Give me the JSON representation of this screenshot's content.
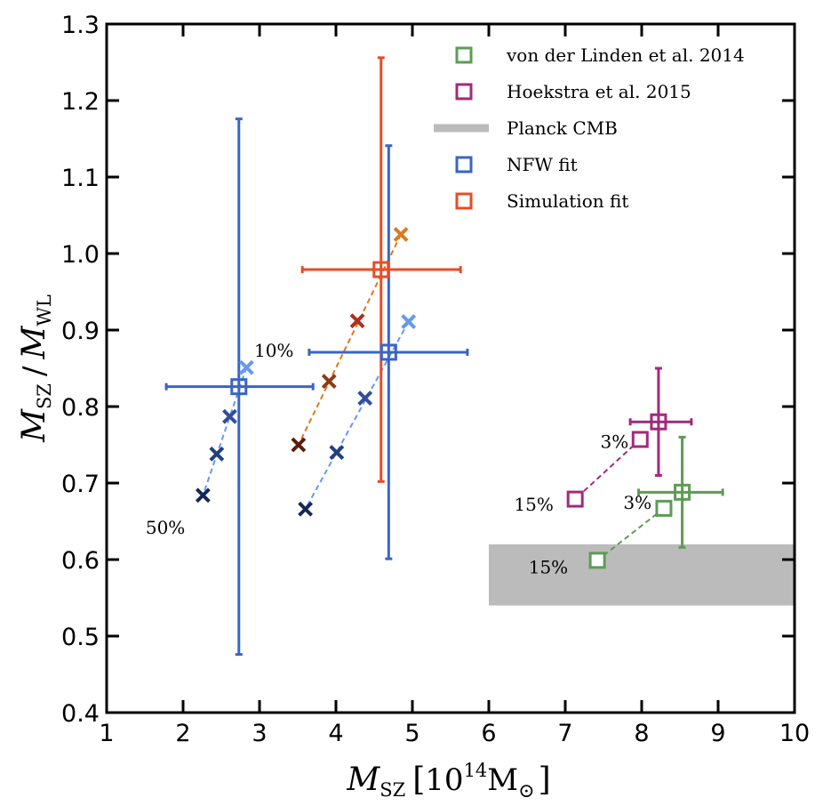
{
  "chart_data": {
    "type": "scatter",
    "xlabel": {
      "main": "M",
      "sub": "SZ",
      "bracket_open": "[",
      "base": "10",
      "exp": "14",
      "unit": "M",
      "sun": "⊙",
      "bracket_close": "]"
    },
    "ylabel": {
      "m1": "M",
      "s1": "SZ",
      "slash": "/",
      "m2": "M",
      "s2": "WL"
    },
    "xlim": [
      1,
      10
    ],
    "ylim": [
      0.4,
      1.3
    ],
    "xticks": [
      "1",
      "2",
      "3",
      "4",
      "5",
      "6",
      "7",
      "8",
      "9",
      "10"
    ],
    "yticks": [
      "0.4",
      "0.5",
      "0.6",
      "0.7",
      "0.8",
      "0.9",
      "1.0",
      "1.1",
      "1.2",
      "1.3"
    ],
    "grid": false,
    "legend": {
      "placement": "top-right",
      "entries": [
        {
          "label": "von der Linden et al. 2014",
          "color": "#5e9b55",
          "marker": "square"
        },
        {
          "label": "Hoekstra et al. 2015",
          "color": "#a3297a",
          "marker": "square"
        },
        {
          "label": "Planck CMB",
          "color": "#bbbbbb",
          "marker": "band"
        },
        {
          "label": "NFW fit",
          "color": "#3a64c8",
          "marker": "square"
        },
        {
          "label": "Simulation fit",
          "color": "#ea4b24",
          "marker": "square"
        }
      ]
    },
    "bands": [
      {
        "name": "Planck CMB",
        "x": [
          6,
          10
        ],
        "y": [
          0.54,
          0.62
        ],
        "color": "#bbbbbb"
      }
    ],
    "errorbars": [
      {
        "series": "NFW fit",
        "x": 2.73,
        "y": 0.826,
        "xerr": [
          0.95,
          0.97
        ],
        "yerr": [
          0.35,
          0.35
        ],
        "color": "#3a64c8"
      },
      {
        "series": "NFW fit",
        "x": 4.69,
        "y": 0.871,
        "xerr": [
          1.04,
          1.03
        ],
        "yerr": [
          0.27,
          0.27
        ],
        "color": "#3a64c8"
      },
      {
        "series": "Simulation fit",
        "x": 4.59,
        "y": 0.979,
        "xerr": [
          1.03,
          1.04
        ],
        "yerr": [
          0.277,
          0.277
        ],
        "color": "#ea4b24"
      },
      {
        "series": "Hoekstra et al. 2015",
        "x": 8.22,
        "y": 0.78,
        "xerr": [
          0.37,
          0.43
        ],
        "yerr": [
          0.07,
          0.07
        ],
        "color": "#a3297a"
      },
      {
        "series": "von der Linden et al. 2014",
        "x": 8.53,
        "y": 0.688,
        "xerr": [
          0.57,
          0.53
        ],
        "yerr": [
          0.072,
          0.072
        ],
        "color": "#5e9b55"
      }
    ],
    "cross_sequences": [
      {
        "name": "NFW sequence 1",
        "points": [
          {
            "x": 2.83,
            "y": 0.851,
            "color": "#6699ee"
          },
          {
            "x": 2.61,
            "y": 0.787,
            "color": "#2f4f9c"
          },
          {
            "x": 2.44,
            "y": 0.738,
            "color": "#22407e"
          },
          {
            "x": 2.26,
            "y": 0.684,
            "color": "#152755"
          }
        ]
      },
      {
        "name": "NFW sequence 2",
        "points": [
          {
            "x": 4.95,
            "y": 0.911,
            "color": "#6699ee"
          },
          {
            "x": 4.38,
            "y": 0.811,
            "color": "#2f4f9c"
          },
          {
            "x": 4.01,
            "y": 0.74,
            "color": "#22407e"
          },
          {
            "x": 3.6,
            "y": 0.666,
            "color": "#152755"
          }
        ]
      },
      {
        "name": "Simulation sequence",
        "points": [
          {
            "x": 4.85,
            "y": 1.025,
            "color": "#db7a1c"
          },
          {
            "x": 4.28,
            "y": 0.912,
            "color": "#b0301f"
          },
          {
            "x": 3.91,
            "y": 0.833,
            "color": "#8f3a14"
          },
          {
            "x": 3.51,
            "y": 0.75,
            "color": "#5e1a0c"
          }
        ]
      }
    ],
    "square_sequences": [
      {
        "name": "Hoekstra sequence",
        "color": "#a3297a",
        "points": [
          {
            "x": 7.98,
            "y": 0.757
          },
          {
            "x": 7.13,
            "y": 0.679
          }
        ]
      },
      {
        "name": "von der Linden sequence",
        "color": "#5e9b55",
        "points": [
          {
            "x": 8.29,
            "y": 0.667
          },
          {
            "x": 7.42,
            "y": 0.599
          }
        ]
      }
    ],
    "annotations": [
      {
        "text": "10%",
        "x": 2.7,
        "y": 0.86
      },
      {
        "text": "50%",
        "x": 1.78,
        "y": 0.64
      },
      {
        "text": "3%",
        "x": 7.45,
        "y": 0.755
      },
      {
        "text": "15%",
        "x": 1.0,
        "y": 0.0
      },
      {
        "text": "3%",
        "x": 0.0,
        "y": 0.0
      },
      {
        "text": "15%",
        "x": 0.0,
        "y": 0.0
      }
    ]
  }
}
